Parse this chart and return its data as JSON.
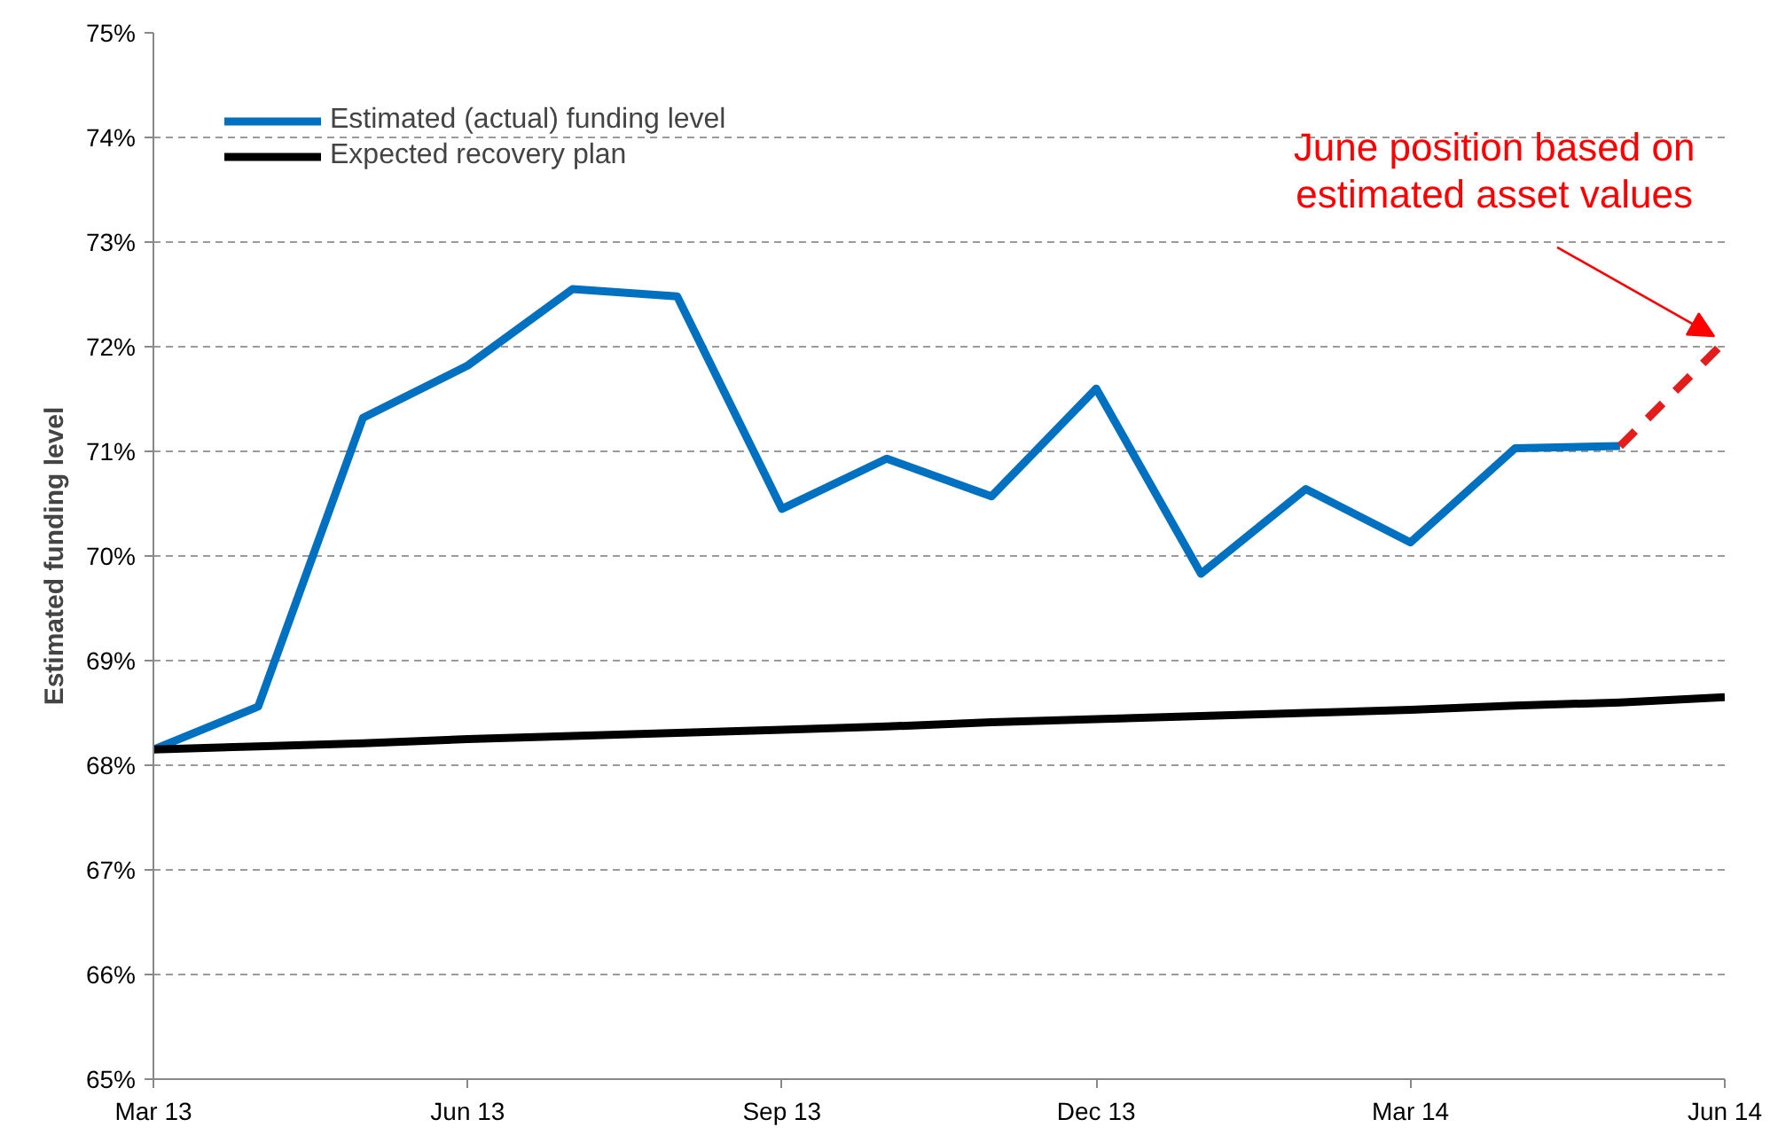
{
  "chart_data": {
    "type": "line",
    "ylabel": "Estimated funding level",
    "categories": [
      "Mar 13",
      null,
      null,
      "Jun 13",
      null,
      null,
      "Sep 13",
      null,
      null,
      "Dec 13",
      null,
      null,
      "Mar 14",
      null,
      null,
      "Jun 14"
    ],
    "series": [
      {
        "name": "Estimated (actual) funding level",
        "color": "#0070c0",
        "values": [
          68.15,
          68.56,
          71.32,
          71.82,
          72.55,
          72.48,
          70.45,
          70.93,
          70.57,
          71.6,
          69.83,
          70.64,
          70.13,
          71.03,
          71.05,
          null
        ]
      },
      {
        "name": "Expected recovery plan",
        "color": "#000000",
        "values": [
          68.15,
          68.18,
          68.21,
          68.25,
          68.28,
          68.31,
          68.34,
          68.37,
          68.41,
          68.44,
          68.47,
          68.5,
          68.53,
          68.57,
          68.6,
          68.65
        ]
      },
      {
        "color": "#e31c1c",
        "line_style": "dashed",
        "values": [
          null,
          null,
          null,
          null,
          null,
          null,
          null,
          null,
          null,
          null,
          null,
          null,
          null,
          null,
          71.05,
          72.05
        ]
      }
    ],
    "ylim": [
      65,
      75
    ],
    "yticks": [
      {
        "value": 65,
        "label": "65%"
      },
      {
        "value": 66,
        "label": "66%"
      },
      {
        "value": 67,
        "label": "67%"
      },
      {
        "value": 68,
        "label": "68%"
      },
      {
        "value": 69,
        "label": "69%"
      },
      {
        "value": 70,
        "label": "70%"
      },
      {
        "value": 71,
        "label": "71%"
      },
      {
        "value": 72,
        "label": "72%"
      },
      {
        "value": 73,
        "label": "73%"
      },
      {
        "value": 74,
        "label": "74%"
      },
      {
        "value": 75,
        "label": "75%"
      }
    ],
    "grid": "y",
    "legend": "top left",
    "line_style": "solid",
    "marker": "none",
    "annotations": [
      "June position based on\nestimated asset values"
    ]
  }
}
